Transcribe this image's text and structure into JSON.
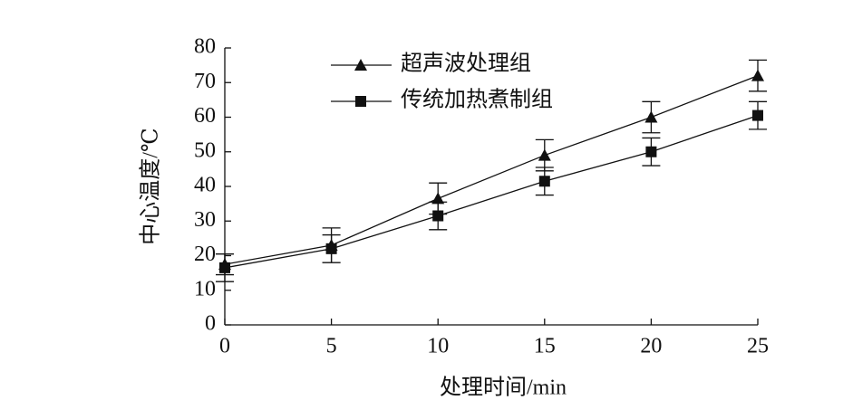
{
  "chart_data": {
    "type": "line",
    "x_label": "处理时间/min",
    "y_label": "中心温度/℃",
    "x": [
      0,
      5,
      10,
      15,
      20,
      25
    ],
    "series": [
      {
        "name": "超声波处理组",
        "color": "#111111",
        "marker": "triangle",
        "values": [
          17.5,
          23,
          36.5,
          49,
          60,
          72
        ],
        "errors": [
          3,
          5,
          4.5,
          4.5,
          4.5,
          4.5
        ]
      },
      {
        "name": "传统加热煮制组",
        "color": "#111111",
        "marker": "square",
        "values": [
          16.5,
          22,
          31.5,
          41.5,
          50,
          60.5
        ],
        "errors": [
          4,
          4,
          4,
          4,
          4,
          4
        ]
      }
    ],
    "xlim": [
      0,
      25
    ],
    "xticks": [
      0,
      5,
      10,
      15,
      20,
      25
    ],
    "ylim": [
      0,
      80
    ],
    "yticks": [
      0,
      10,
      20,
      30,
      40,
      50,
      60,
      70,
      80
    ],
    "grid": false,
    "legend": "top-left"
  }
}
